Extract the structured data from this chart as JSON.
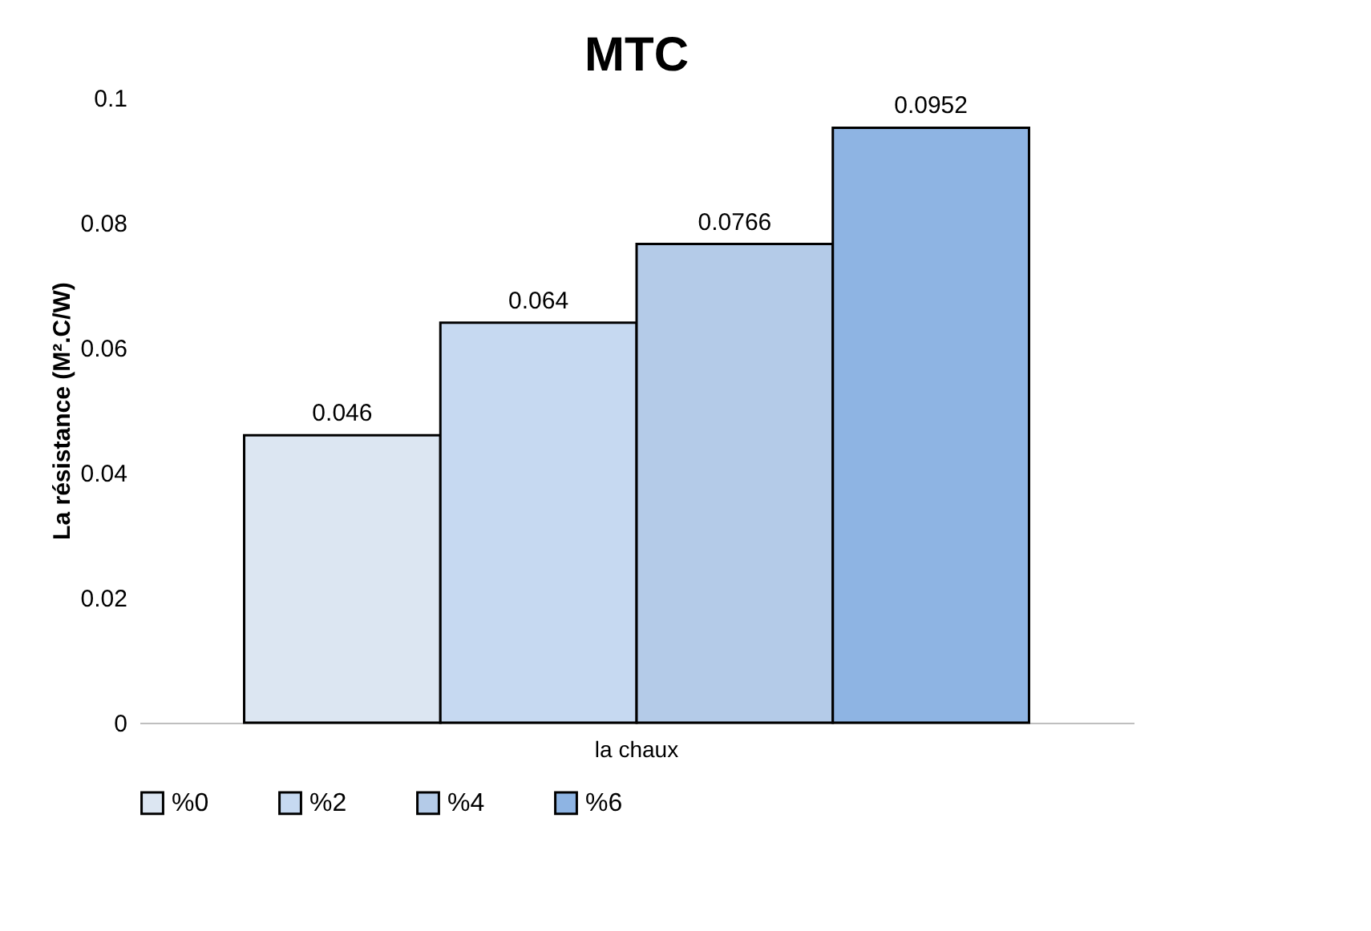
{
  "chart_data": {
    "type": "bar",
    "title": "MTC",
    "ylabel": "La résistance (M².C/W)",
    "categories": [
      "la chaux"
    ],
    "series": [
      {
        "name": "%0",
        "color": "#dce6f2",
        "values": [
          0.046
        ]
      },
      {
        "name": "%2",
        "color": "#c6d9f1",
        "values": [
          0.064
        ]
      },
      {
        "name": "%4",
        "color": "#b4cbe8",
        "values": [
          0.0766
        ]
      },
      {
        "name": "%6",
        "color": "#8eb4e3",
        "values": [
          0.0952
        ]
      }
    ],
    "ylim": [
      0,
      0.1
    ],
    "yticks": [
      0,
      0.02,
      0.04,
      0.06,
      0.08,
      0.1
    ],
    "data_labels": true,
    "grid": false,
    "legend": "bottom"
  }
}
